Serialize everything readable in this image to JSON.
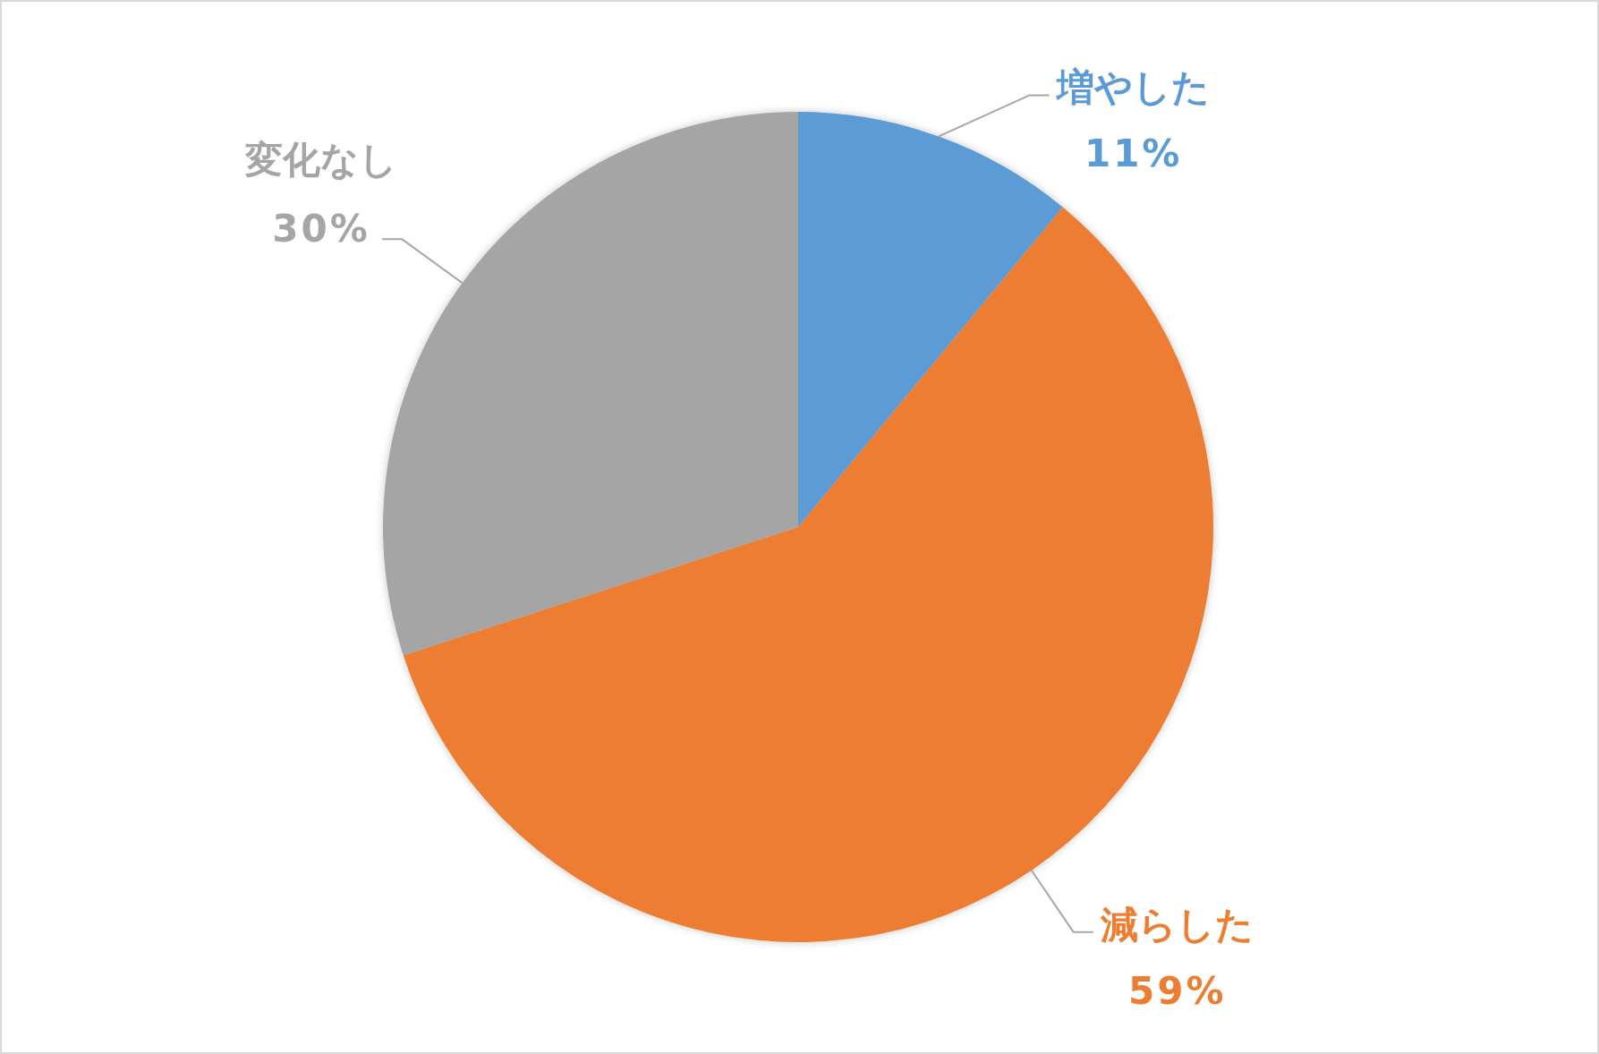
{
  "chart_data": {
    "type": "pie",
    "categories": [
      "増やした",
      "減らした",
      "変化なし"
    ],
    "values": [
      11,
      59,
      30
    ],
    "colors": [
      "#5b9bd5",
      "#ed7d31",
      "#a5a5a5"
    ],
    "value_labels": [
      "11%",
      "59%",
      "30%"
    ]
  }
}
